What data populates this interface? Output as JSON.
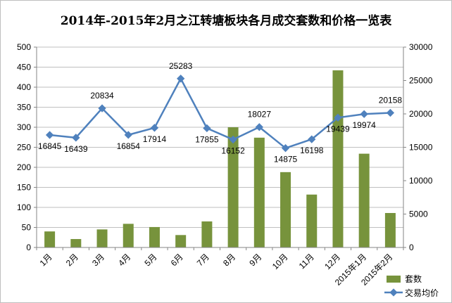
{
  "chart_data": {
    "type": "bar",
    "title": "2014年-2015年2月之江转塘板块各月成交套数和价格一览表",
    "categories": [
      "1月",
      "2月",
      "3月",
      "4月",
      "5月",
      "6月",
      "7月",
      "8月",
      "9月",
      "10月",
      "11月",
      "12月",
      "2015年1月",
      "2015年2月"
    ],
    "series": [
      {
        "name": "套数",
        "type": "bar",
        "axis": "left",
        "color": "#77933c",
        "values": [
          40,
          21,
          45,
          59,
          51,
          31,
          65,
          300,
          274,
          188,
          132,
          442,
          234,
          86
        ]
      },
      {
        "name": "交易均价",
        "type": "line",
        "axis": "right",
        "color": "#4f81bd",
        "values": [
          16845,
          16439,
          20834,
          16854,
          17914,
          25283,
          17855,
          16152,
          18027,
          14875,
          16198,
          19439,
          19974,
          20158
        ]
      }
    ],
    "left_axis": {
      "min": 0,
      "max": 500,
      "step": 50,
      "ticks": [
        "0",
        "50",
        "100",
        "150",
        "200",
        "250",
        "300",
        "350",
        "400",
        "450",
        "500"
      ]
    },
    "right_axis": {
      "min": 0,
      "max": 30000,
      "step": 5000,
      "ticks": [
        "0",
        "5000",
        "10000",
        "15000",
        "20000",
        "25000",
        "30000"
      ]
    },
    "data_labels": [
      "16845",
      "16439",
      "20834",
      "16854",
      "17914",
      "25283",
      "17855",
      "16152",
      "18027",
      "14875",
      "16198",
      "19439",
      "19974",
      "20158"
    ],
    "label_positions": [
      "below",
      "below",
      "above",
      "below",
      "below",
      "above",
      "below",
      "below",
      "above",
      "below",
      "below",
      "below",
      "below",
      "above"
    ],
    "legend": {
      "placement": "bottom-right",
      "items": [
        "套数",
        "交易均价"
      ]
    },
    "gridlines": true
  }
}
